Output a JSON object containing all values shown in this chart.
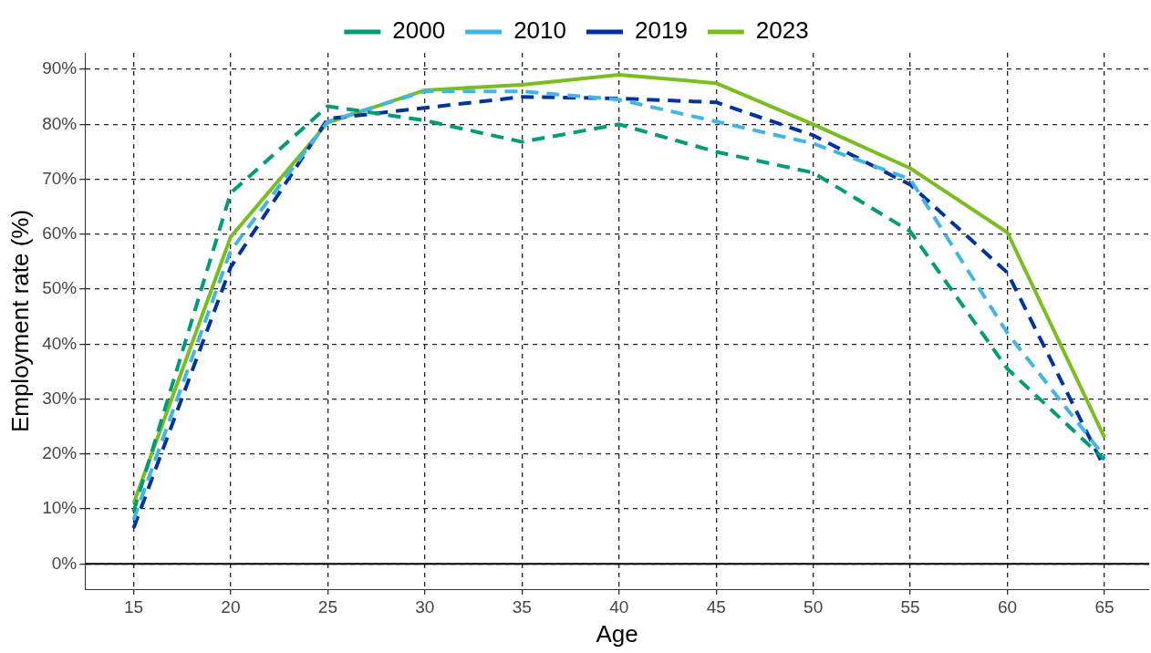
{
  "chart_data": {
    "type": "line",
    "xlabel": "Age",
    "ylabel": "Employment rate (%)",
    "x": [
      15,
      20,
      25,
      30,
      35,
      40,
      45,
      50,
      55,
      60,
      65
    ],
    "series": [
      {
        "name": "2000",
        "color": "#009b77",
        "line_style": "dashed",
        "values": [
          9.5,
          67.5,
          83.3,
          80.7,
          76.8,
          80,
          75,
          71.2,
          60.5,
          35.5,
          19
        ]
      },
      {
        "name": "2010",
        "color": "#41b6e6",
        "line_style": "dashed",
        "values": [
          8,
          57,
          80.5,
          86,
          86,
          84.5,
          80.5,
          76.5,
          70,
          42,
          19.5
        ]
      },
      {
        "name": "2019",
        "color": "#0033a0",
        "line_style": "dashed",
        "values": [
          6.5,
          54,
          81,
          83,
          85,
          84.7,
          84,
          78,
          69,
          53,
          17.5
        ]
      },
      {
        "name": "2023",
        "color": "#78be20",
        "line_style": "solid",
        "values": [
          11,
          59.5,
          80.3,
          86.2,
          87.2,
          89,
          87.5,
          80,
          72,
          60.3,
          23
        ]
      }
    ],
    "xlim": [
      12.5,
      67.3
    ],
    "xticks": [
      15,
      20,
      25,
      30,
      35,
      40,
      45,
      50,
      55,
      60,
      65
    ],
    "ylim": [
      -4.6,
      93
    ],
    "yticks": [
      {
        "value": 0,
        "label": "0%"
      },
      {
        "value": 10,
        "label": "10%"
      },
      {
        "value": 20,
        "label": "20%"
      },
      {
        "value": 30,
        "label": "30%"
      },
      {
        "value": 40,
        "label": "40%"
      },
      {
        "value": 50,
        "label": "50%"
      },
      {
        "value": 60,
        "label": "60%"
      },
      {
        "value": 70,
        "label": "70%"
      },
      {
        "value": 80,
        "label": "80%"
      },
      {
        "value": 90,
        "label": "90%"
      }
    ],
    "ref_lines": [
      {
        "axis": "y",
        "value": 0,
        "color": "#000000",
        "line_style": "solid"
      }
    ],
    "grid": true,
    "legend": "top",
    "marker": "none"
  }
}
